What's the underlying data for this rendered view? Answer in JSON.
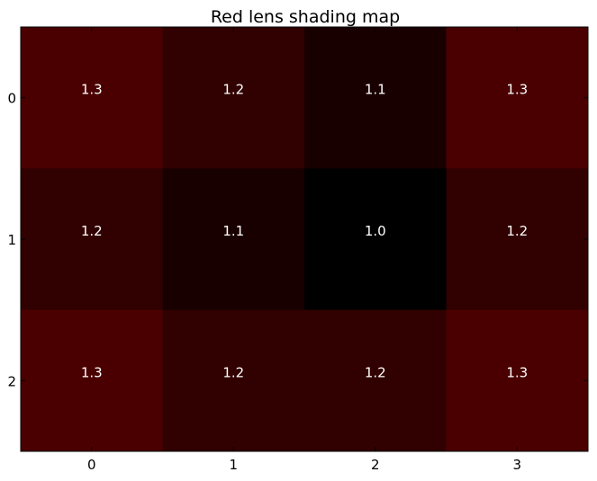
{
  "chart_data": {
    "type": "heatmap",
    "title": "Red lens shading map",
    "x_ticks": [
      "0",
      "1",
      "2",
      "3"
    ],
    "y_ticks": [
      "0",
      "1",
      "2"
    ],
    "values": [
      [
        1.3,
        1.2,
        1.1,
        1.3
      ],
      [
        1.2,
        1.1,
        1.0,
        1.2
      ],
      [
        1.3,
        1.2,
        1.2,
        1.3
      ]
    ],
    "labels": [
      [
        "1.3",
        "1.2",
        "1.1",
        "1.3"
      ],
      [
        "1.2",
        "1.1",
        "1.0",
        "1.2"
      ],
      [
        "1.3",
        "1.2",
        "1.2",
        "1.3"
      ]
    ],
    "color_range": [
      1.0,
      1.3
    ],
    "colormap": {
      "low": "#000000",
      "high": "#4a0000"
    },
    "annotation_color": "#ffffff",
    "grid": false
  }
}
